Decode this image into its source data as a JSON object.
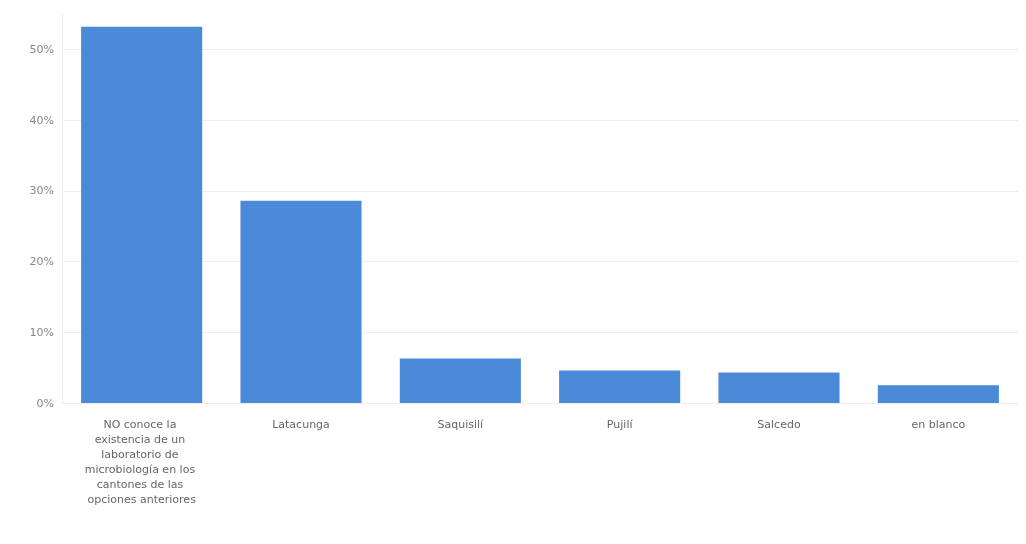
{
  "chart_data": {
    "type": "bar",
    "categories": [
      "NO conoce la existencia de un laboratorio de microbiología en los cantones de las opciones anteriores",
      "Latacunga",
      "Saquisilí",
      "Pujilí",
      "Salcedo",
      "en blanco"
    ],
    "values": [
      53.2,
      28.6,
      6.3,
      4.6,
      4.3,
      2.5
    ],
    "color": "#4a8ad9",
    "ylim": [
      0,
      55
    ],
    "yticks": [
      {
        "value": 0,
        "label": "0%"
      },
      {
        "value": 10,
        "label": "10%"
      },
      {
        "value": 20,
        "label": "20%"
      },
      {
        "value": 30,
        "label": "30%"
      },
      {
        "value": 40,
        "label": "40%"
      },
      {
        "value": 50,
        "label": "50%"
      }
    ],
    "grid": "y"
  }
}
